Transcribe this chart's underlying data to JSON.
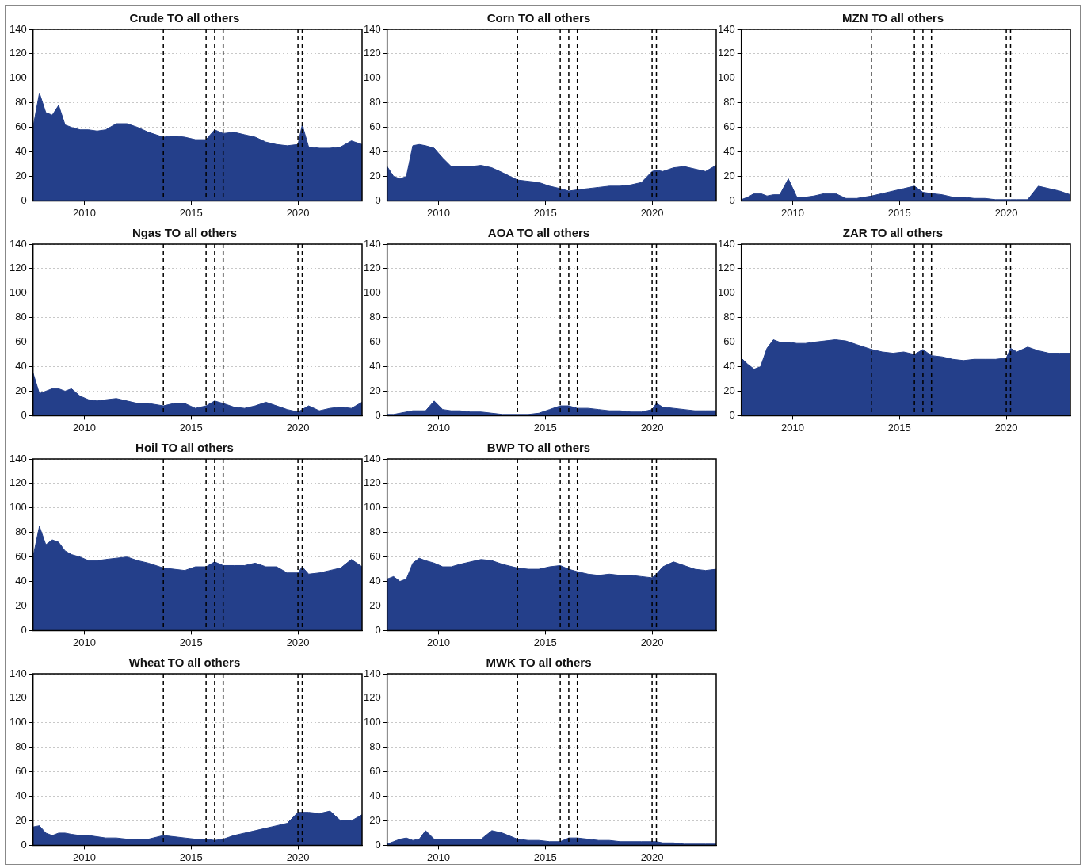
{
  "chart_data": [
    {
      "type": "area",
      "title": "Crude TO all others",
      "x": [
        2007.6,
        2007.9,
        2008.2,
        2008.5,
        2008.8,
        2009.1,
        2009.4,
        2009.8,
        2010.2,
        2010.6,
        2011,
        2011.5,
        2012,
        2012.5,
        2013,
        2013.7,
        2014.2,
        2014.7,
        2015.2,
        2015.7,
        2016.1,
        2016.5,
        2017,
        2017.5,
        2018,
        2018.5,
        2019,
        2019.5,
        2020,
        2020.2,
        2020.5,
        2021,
        2021.5,
        2022,
        2022.5,
        2023
      ],
      "series": [
        {
          "color": "#243f8a",
          "values": [
            60,
            88,
            72,
            70,
            78,
            62,
            60,
            58,
            58,
            57,
            58,
            63,
            63,
            60,
            56,
            52,
            53,
            52,
            50,
            50,
            58,
            55,
            56,
            54,
            52,
            48,
            46,
            45,
            46,
            62,
            44,
            43,
            43,
            44,
            49,
            46
          ]
        }
      ],
      "xlim": [
        2007.6,
        2023.0
      ],
      "xticks": [
        2010,
        2015,
        2020
      ],
      "ylim": [
        0,
        140
      ],
      "yticks": [
        0,
        20,
        40,
        60,
        80,
        100,
        120,
        140
      ],
      "grid": "y",
      "legend": false,
      "line_style": "dashed",
      "ref_lines": [
        {
          "axis": "x",
          "value": 2013.7
        },
        {
          "axis": "x",
          "value": 2015.7
        },
        {
          "axis": "x",
          "value": 2016.1
        },
        {
          "axis": "x",
          "value": 2016.5
        },
        {
          "axis": "x",
          "value": 2020.0
        },
        {
          "axis": "x",
          "value": 2020.2
        }
      ]
    },
    {
      "type": "area",
      "title": "Corn TO all others",
      "x": [
        2007.6,
        2007.9,
        2008.2,
        2008.5,
        2008.8,
        2009.1,
        2009.4,
        2009.8,
        2010.2,
        2010.6,
        2011,
        2011.5,
        2012,
        2012.5,
        2013,
        2013.7,
        2014.2,
        2014.7,
        2015.2,
        2015.7,
        2016.1,
        2016.5,
        2017,
        2017.5,
        2018,
        2018.5,
        2019,
        2019.5,
        2020,
        2020.2,
        2020.5,
        2021,
        2021.5,
        2022,
        2022.5,
        2023
      ],
      "series": [
        {
          "color": "#243f8a",
          "values": [
            28,
            20,
            18,
            20,
            45,
            46,
            45,
            43,
            35,
            28,
            28,
            28,
            29,
            27,
            23,
            17,
            16,
            15,
            12,
            10,
            8,
            9,
            10,
            11,
            12,
            12,
            13,
            15,
            24,
            25,
            24,
            27,
            28,
            26,
            24,
            29
          ]
        }
      ],
      "xlim": [
        2007.6,
        2023.0
      ],
      "xticks": [
        2010,
        2015,
        2020
      ],
      "ylim": [
        0,
        140
      ],
      "yticks": [
        0,
        20,
        40,
        60,
        80,
        100,
        120,
        140
      ],
      "grid": "y",
      "legend": false,
      "line_style": "dashed",
      "ref_lines": [
        {
          "axis": "x",
          "value": 2013.7
        },
        {
          "axis": "x",
          "value": 2015.7
        },
        {
          "axis": "x",
          "value": 2016.1
        },
        {
          "axis": "x",
          "value": 2016.5
        },
        {
          "axis": "x",
          "value": 2020.0
        },
        {
          "axis": "x",
          "value": 2020.2
        }
      ]
    },
    {
      "type": "area",
      "title": "MZN TO all others",
      "x": [
        2007.6,
        2007.9,
        2008.2,
        2008.5,
        2008.8,
        2009.1,
        2009.4,
        2009.8,
        2010.2,
        2010.6,
        2011,
        2011.5,
        2012,
        2012.5,
        2013,
        2013.7,
        2014.2,
        2014.7,
        2015.2,
        2015.7,
        2016.1,
        2016.5,
        2017,
        2017.5,
        2018,
        2018.5,
        2019,
        2019.5,
        2020,
        2020.2,
        2020.5,
        2021,
        2021.5,
        2022,
        2022.5,
        2023
      ],
      "series": [
        {
          "color": "#243f8a",
          "values": [
            1,
            3,
            6,
            6,
            4,
            5,
            5,
            18,
            3,
            3,
            4,
            6,
            6,
            2,
            2,
            4,
            6,
            8,
            10,
            12,
            7,
            6,
            5,
            3,
            3,
            2,
            2,
            1,
            1,
            1,
            1,
            1,
            12,
            10,
            8,
            5
          ]
        }
      ],
      "xlim": [
        2007.6,
        2023.0
      ],
      "xticks": [
        2010,
        2015,
        2020
      ],
      "ylim": [
        0,
        140
      ],
      "yticks": [
        0,
        20,
        40,
        60,
        80,
        100,
        120,
        140
      ],
      "grid": "y",
      "legend": false,
      "line_style": "dashed",
      "ref_lines": [
        {
          "axis": "x",
          "value": 2013.7
        },
        {
          "axis": "x",
          "value": 2015.7
        },
        {
          "axis": "x",
          "value": 2016.1
        },
        {
          "axis": "x",
          "value": 2016.5
        },
        {
          "axis": "x",
          "value": 2020.0
        },
        {
          "axis": "x",
          "value": 2020.2
        }
      ]
    },
    {
      "type": "area",
      "title": "Ngas TO all others",
      "x": [
        2007.6,
        2007.9,
        2008.2,
        2008.5,
        2008.8,
        2009.1,
        2009.4,
        2009.8,
        2010.2,
        2010.6,
        2011,
        2011.5,
        2012,
        2012.5,
        2013,
        2013.7,
        2014.2,
        2014.7,
        2015.2,
        2015.7,
        2016.1,
        2016.5,
        2017,
        2017.5,
        2018,
        2018.5,
        2019,
        2019.5,
        2020,
        2020.2,
        2020.5,
        2021,
        2021.5,
        2022,
        2022.5,
        2023
      ],
      "series": [
        {
          "color": "#243f8a",
          "values": [
            35,
            18,
            20,
            22,
            22,
            20,
            22,
            16,
            13,
            12,
            13,
            14,
            12,
            10,
            10,
            8,
            10,
            10,
            6,
            8,
            12,
            10,
            7,
            6,
            8,
            11,
            8,
            5,
            3,
            5,
            8,
            4,
            6,
            7,
            6,
            11
          ]
        }
      ],
      "xlim": [
        2007.6,
        2023.0
      ],
      "xticks": [
        2010,
        2015,
        2020
      ],
      "ylim": [
        0,
        140
      ],
      "yticks": [
        0,
        20,
        40,
        60,
        80,
        100,
        120,
        140
      ],
      "grid": "y",
      "legend": false,
      "line_style": "dashed",
      "ref_lines": [
        {
          "axis": "x",
          "value": 2013.7
        },
        {
          "axis": "x",
          "value": 2015.7
        },
        {
          "axis": "x",
          "value": 2016.1
        },
        {
          "axis": "x",
          "value": 2016.5
        },
        {
          "axis": "x",
          "value": 2020.0
        },
        {
          "axis": "x",
          "value": 2020.2
        }
      ]
    },
    {
      "type": "area",
      "title": "AOA TO all others",
      "x": [
        2007.6,
        2007.9,
        2008.2,
        2008.5,
        2008.8,
        2009.1,
        2009.4,
        2009.8,
        2010.2,
        2010.6,
        2011,
        2011.5,
        2012,
        2012.5,
        2013,
        2013.7,
        2014.2,
        2014.7,
        2015.2,
        2015.7,
        2016.1,
        2016.5,
        2017,
        2017.5,
        2018,
        2018.5,
        2019,
        2019.5,
        2020,
        2020.2,
        2020.5,
        2021,
        2021.5,
        2022,
        2022.5,
        2023
      ],
      "series": [
        {
          "color": "#243f8a",
          "values": [
            1,
            1,
            2,
            3,
            4,
            4,
            4,
            12,
            5,
            4,
            4,
            3,
            3,
            2,
            1,
            1,
            1,
            2,
            5,
            8,
            8,
            6,
            6,
            5,
            4,
            4,
            3,
            3,
            5,
            10,
            7,
            6,
            5,
            4,
            4,
            4
          ]
        }
      ],
      "xlim": [
        2007.6,
        2023.0
      ],
      "xticks": [
        2010,
        2015,
        2020
      ],
      "ylim": [
        0,
        140
      ],
      "yticks": [
        0,
        20,
        40,
        60,
        80,
        100,
        120,
        140
      ],
      "grid": "y",
      "legend": false,
      "line_style": "dashed",
      "ref_lines": [
        {
          "axis": "x",
          "value": 2013.7
        },
        {
          "axis": "x",
          "value": 2015.7
        },
        {
          "axis": "x",
          "value": 2016.1
        },
        {
          "axis": "x",
          "value": 2016.5
        },
        {
          "axis": "x",
          "value": 2020.0
        },
        {
          "axis": "x",
          "value": 2020.2
        }
      ]
    },
    {
      "type": "area",
      "title": "ZAR TO all others",
      "x": [
        2007.6,
        2007.9,
        2008.2,
        2008.5,
        2008.8,
        2009.1,
        2009.4,
        2009.8,
        2010.2,
        2010.6,
        2011,
        2011.5,
        2012,
        2012.5,
        2013,
        2013.7,
        2014.2,
        2014.7,
        2015.2,
        2015.7,
        2016.1,
        2016.5,
        2017,
        2017.5,
        2018,
        2018.5,
        2019,
        2019.5,
        2020,
        2020.2,
        2020.5,
        2021,
        2021.5,
        2022,
        2022.5,
        2023
      ],
      "series": [
        {
          "color": "#243f8a",
          "values": [
            47,
            42,
            38,
            40,
            55,
            62,
            60,
            60,
            59,
            59,
            60,
            61,
            62,
            61,
            58,
            54,
            52,
            51,
            52,
            50,
            54,
            49,
            48,
            46,
            45,
            46,
            46,
            46,
            47,
            55,
            52,
            56,
            53,
            51,
            51,
            51
          ]
        }
      ],
      "xlim": [
        2007.6,
        2023.0
      ],
      "xticks": [
        2010,
        2015,
        2020
      ],
      "ylim": [
        0,
        140
      ],
      "yticks": [
        0,
        20,
        40,
        60,
        80,
        100,
        120,
        140
      ],
      "grid": "y",
      "legend": false,
      "line_style": "dashed",
      "ref_lines": [
        {
          "axis": "x",
          "value": 2013.7
        },
        {
          "axis": "x",
          "value": 2015.7
        },
        {
          "axis": "x",
          "value": 2016.1
        },
        {
          "axis": "x",
          "value": 2016.5
        },
        {
          "axis": "x",
          "value": 2020.0
        },
        {
          "axis": "x",
          "value": 2020.2
        }
      ]
    },
    {
      "type": "area",
      "title": "Hoil TO all others",
      "x": [
        2007.6,
        2007.9,
        2008.2,
        2008.5,
        2008.8,
        2009.1,
        2009.4,
        2009.8,
        2010.2,
        2010.6,
        2011,
        2011.5,
        2012,
        2012.5,
        2013,
        2013.7,
        2014.2,
        2014.7,
        2015.2,
        2015.7,
        2016.1,
        2016.5,
        2017,
        2017.5,
        2018,
        2018.5,
        2019,
        2019.5,
        2020,
        2020.2,
        2020.5,
        2021,
        2021.5,
        2022,
        2022.5,
        2023
      ],
      "series": [
        {
          "color": "#243f8a",
          "values": [
            60,
            85,
            70,
            74,
            72,
            65,
            62,
            60,
            57,
            57,
            58,
            59,
            60,
            57,
            55,
            51,
            50,
            49,
            52,
            52,
            56,
            53,
            53,
            53,
            55,
            52,
            52,
            47,
            47,
            52,
            46,
            47,
            49,
            51,
            58,
            52
          ]
        }
      ],
      "xlim": [
        2007.6,
        2023.0
      ],
      "xticks": [
        2010,
        2015,
        2020
      ],
      "ylim": [
        0,
        140
      ],
      "yticks": [
        0,
        20,
        40,
        60,
        80,
        100,
        120,
        140
      ],
      "grid": "y",
      "legend": false,
      "line_style": "dashed",
      "ref_lines": [
        {
          "axis": "x",
          "value": 2013.7
        },
        {
          "axis": "x",
          "value": 2015.7
        },
        {
          "axis": "x",
          "value": 2016.1
        },
        {
          "axis": "x",
          "value": 2016.5
        },
        {
          "axis": "x",
          "value": 2020.0
        },
        {
          "axis": "x",
          "value": 2020.2
        }
      ]
    },
    {
      "type": "area",
      "title": "BWP TO all others",
      "x": [
        2007.6,
        2007.9,
        2008.2,
        2008.5,
        2008.8,
        2009.1,
        2009.4,
        2009.8,
        2010.2,
        2010.6,
        2011,
        2011.5,
        2012,
        2012.5,
        2013,
        2013.7,
        2014.2,
        2014.7,
        2015.2,
        2015.7,
        2016.1,
        2016.5,
        2017,
        2017.5,
        2018,
        2018.5,
        2019,
        2019.5,
        2020,
        2020.2,
        2020.5,
        2021,
        2021.5,
        2022,
        2022.5,
        2023
      ],
      "series": [
        {
          "color": "#243f8a",
          "values": [
            42,
            44,
            40,
            42,
            55,
            59,
            57,
            55,
            52,
            52,
            54,
            56,
            58,
            57,
            54,
            51,
            50,
            50,
            52,
            53,
            50,
            48,
            46,
            45,
            46,
            45,
            45,
            44,
            43,
            46,
            52,
            56,
            53,
            50,
            49,
            50
          ]
        }
      ],
      "xlim": [
        2007.6,
        2023.0
      ],
      "xticks": [
        2010,
        2015,
        2020
      ],
      "ylim": [
        0,
        140
      ],
      "yticks": [
        0,
        20,
        40,
        60,
        80,
        100,
        120,
        140
      ],
      "grid": "y",
      "legend": false,
      "line_style": "dashed",
      "ref_lines": [
        {
          "axis": "x",
          "value": 2013.7
        },
        {
          "axis": "x",
          "value": 2015.7
        },
        {
          "axis": "x",
          "value": 2016.1
        },
        {
          "axis": "x",
          "value": 2016.5
        },
        {
          "axis": "x",
          "value": 2020.0
        },
        {
          "axis": "x",
          "value": 2020.2
        }
      ]
    },
    {
      "type": "area",
      "title": "Wheat TO all others",
      "x": [
        2007.6,
        2007.9,
        2008.2,
        2008.5,
        2008.8,
        2009.1,
        2009.4,
        2009.8,
        2010.2,
        2010.6,
        2011,
        2011.5,
        2012,
        2012.5,
        2013,
        2013.7,
        2014.2,
        2014.7,
        2015.2,
        2015.7,
        2016.1,
        2016.5,
        2017,
        2017.5,
        2018,
        2018.5,
        2019,
        2019.5,
        2020,
        2020.2,
        2020.5,
        2021,
        2021.5,
        2022,
        2022.5,
        2023
      ],
      "series": [
        {
          "color": "#243f8a",
          "values": [
            15,
            16,
            10,
            8,
            10,
            10,
            9,
            8,
            8,
            7,
            6,
            6,
            5,
            5,
            5,
            8,
            7,
            6,
            5,
            5,
            4,
            5,
            8,
            10,
            12,
            14,
            16,
            18,
            27,
            27,
            27,
            26,
            28,
            20,
            20,
            25
          ]
        }
      ],
      "xlim": [
        2007.6,
        2023.0
      ],
      "xticks": [
        2010,
        2015,
        2020
      ],
      "ylim": [
        0,
        140
      ],
      "yticks": [
        0,
        20,
        40,
        60,
        80,
        100,
        120,
        140
      ],
      "grid": "y",
      "legend": false,
      "line_style": "dashed",
      "ref_lines": [
        {
          "axis": "x",
          "value": 2013.7
        },
        {
          "axis": "x",
          "value": 2015.7
        },
        {
          "axis": "x",
          "value": 2016.1
        },
        {
          "axis": "x",
          "value": 2016.5
        },
        {
          "axis": "x",
          "value": 2020.0
        },
        {
          "axis": "x",
          "value": 2020.2
        }
      ]
    },
    {
      "type": "area",
      "title": "MWK TO all others",
      "x": [
        2007.6,
        2007.9,
        2008.2,
        2008.5,
        2008.8,
        2009.1,
        2009.4,
        2009.8,
        2010.2,
        2010.6,
        2011,
        2011.5,
        2012,
        2012.5,
        2013,
        2013.7,
        2014.2,
        2014.7,
        2015.2,
        2015.7,
        2016.1,
        2016.5,
        2017,
        2017.5,
        2018,
        2018.5,
        2019,
        2019.5,
        2020,
        2020.2,
        2020.5,
        2021,
        2021.5,
        2022,
        2022.5,
        2023
      ],
      "series": [
        {
          "color": "#243f8a",
          "values": [
            1,
            3,
            5,
            6,
            4,
            5,
            12,
            5,
            5,
            5,
            5,
            5,
            5,
            12,
            10,
            5,
            4,
            4,
            3,
            3,
            6,
            6,
            5,
            4,
            4,
            3,
            3,
            3,
            3,
            3,
            2,
            2,
            1,
            1,
            1,
            1
          ]
        }
      ],
      "xlim": [
        2007.6,
        2023.0
      ],
      "xticks": [
        2010,
        2015,
        2020
      ],
      "ylim": [
        0,
        140
      ],
      "yticks": [
        0,
        20,
        40,
        60,
        80,
        100,
        120,
        140
      ],
      "grid": "y",
      "legend": false,
      "line_style": "dashed",
      "ref_lines": [
        {
          "axis": "x",
          "value": 2013.7
        },
        {
          "axis": "x",
          "value": 2015.7
        },
        {
          "axis": "x",
          "value": 2016.1
        },
        {
          "axis": "x",
          "value": 2016.5
        },
        {
          "axis": "x",
          "value": 2020.0
        },
        {
          "axis": "x",
          "value": 2020.2
        }
      ]
    }
  ]
}
